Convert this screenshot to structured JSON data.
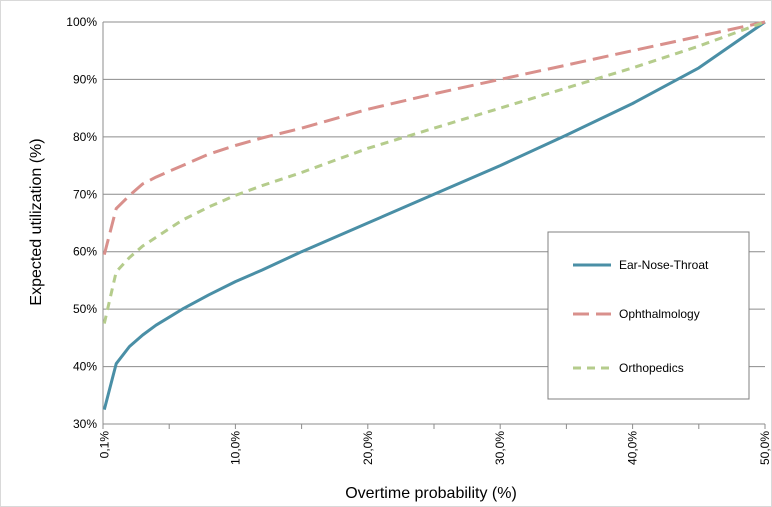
{
  "chart_data": {
    "type": "line",
    "title": "",
    "xlabel": "Overtime probability (%)",
    "ylabel": "Expected utilization (%)",
    "xlim": [
      0,
      50
    ],
    "ylim": [
      30,
      100
    ],
    "x_ticks": [
      0.1,
      10,
      20,
      30,
      40,
      50
    ],
    "x_tick_labels": [
      "0,1%",
      "10,0%",
      "20,0%",
      "30,0%",
      "40,0%",
      "50,0%"
    ],
    "y_ticks": [
      30,
      40,
      50,
      60,
      70,
      80,
      90,
      100
    ],
    "y_tick_labels": [
      "30%",
      "40%",
      "50%",
      "60%",
      "70%",
      "80%",
      "90%",
      "100%"
    ],
    "grid": "horizontal",
    "legend_position": "right",
    "series": [
      {
        "name": "Ear-Nose-Throat",
        "color": "#4a8fa6",
        "dash": "solid",
        "x": [
          0.1,
          1,
          2,
          3,
          4,
          5,
          6,
          8,
          10,
          12,
          15,
          20,
          25,
          30,
          35,
          40,
          45,
          50
        ],
        "y": [
          32.5,
          40.5,
          43.5,
          45.5,
          47.2,
          48.6,
          50.0,
          52.5,
          54.8,
          56.8,
          60.0,
          65.0,
          70.0,
          75.0,
          80.3,
          85.8,
          92.0,
          100
        ]
      },
      {
        "name": "Ophthalmology",
        "color": "#d9908c",
        "dash": "long-dash",
        "x": [
          0.1,
          1,
          2,
          3,
          4,
          5,
          6,
          8,
          10,
          12,
          15,
          20,
          25,
          30,
          35,
          40,
          45,
          50
        ],
        "y": [
          59.5,
          67.5,
          69.8,
          71.8,
          73.0,
          74.0,
          75.0,
          77.0,
          78.5,
          79.8,
          81.5,
          84.8,
          87.5,
          90.0,
          92.5,
          95.0,
          97.5,
          100
        ]
      },
      {
        "name": "Orthopedics",
        "color": "#b5cc8c",
        "dash": "short-dash",
        "x": [
          0.1,
          1,
          2,
          3,
          4,
          5,
          6,
          8,
          10,
          12,
          15,
          20,
          25,
          30,
          35,
          40,
          45,
          50
        ],
        "y": [
          47.5,
          56.5,
          59.0,
          61.0,
          62.5,
          64.0,
          65.5,
          67.8,
          69.8,
          71.5,
          73.8,
          78.0,
          81.5,
          85.0,
          88.5,
          92.0,
          95.8,
          100
        ]
      }
    ]
  }
}
